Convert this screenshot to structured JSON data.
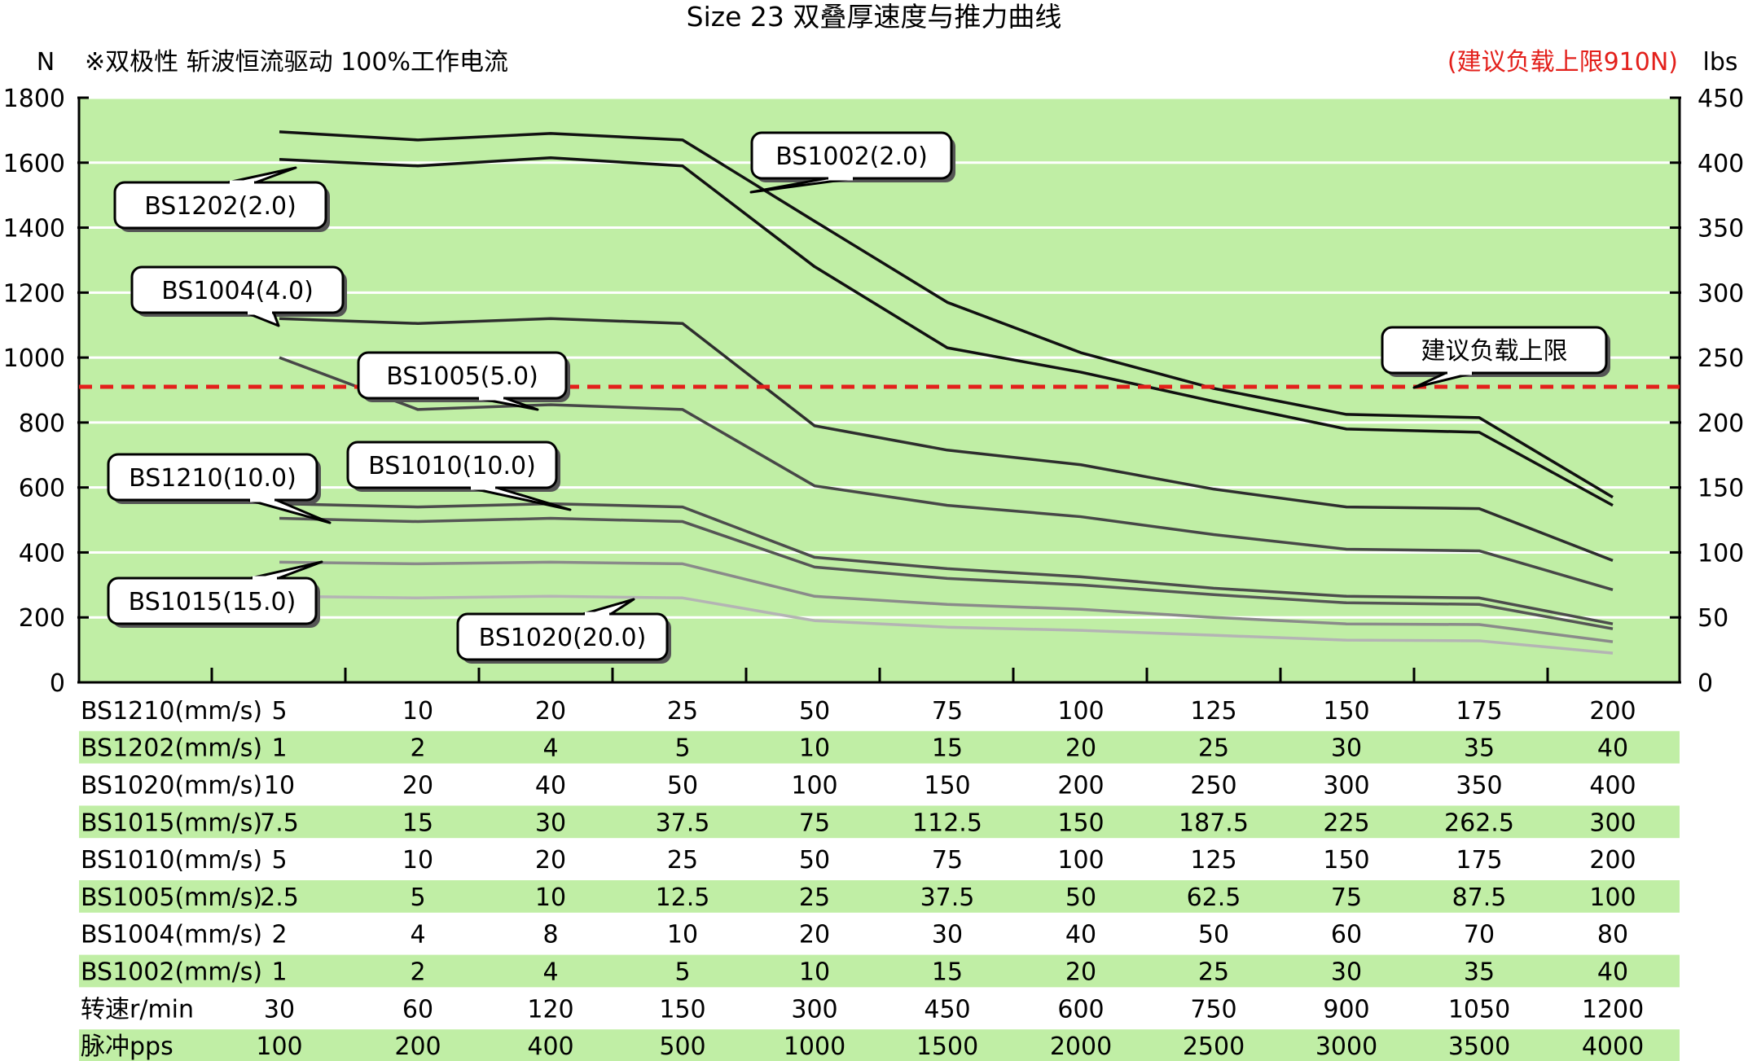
{
  "chart_data": {
    "type": "line",
    "title": "Size 23 双叠厚速度与推力曲线",
    "subtitle": "※双极性 斩波恒流驱动 100%工作电流",
    "note": "(建议负载上限910N)",
    "y_left_unit": "N",
    "y_right_unit": "lbs",
    "y_left_range": [
      0,
      1800
    ],
    "y_right_range": [
      0,
      450
    ],
    "y_left_ticks": [
      "0",
      "200",
      "400",
      "600",
      "800",
      "1000",
      "1200",
      "1400",
      "1600",
      "1800"
    ],
    "y_right_ticks": [
      "0",
      "50",
      "100",
      "150",
      "200",
      "250",
      "300",
      "350",
      "400",
      "450"
    ],
    "grid": true,
    "background_color": "#c0eea5",
    "reference_line": {
      "value": 910,
      "label": "建议负载上限",
      "color": "#e3201b"
    },
    "series": [
      {
        "name": "BS1002(2.0)",
        "color": "#111111",
        "values": [
          1695,
          1670,
          1690,
          1670,
          1420,
          1170,
          1015,
          905,
          825,
          815,
          570
        ]
      },
      {
        "name": "BS1202(2.0)",
        "color": "#111111",
        "values": [
          1610,
          1590,
          1615,
          1590,
          1280,
          1030,
          955,
          865,
          780,
          770,
          545
        ]
      },
      {
        "name": "BS1004(4.0)",
        "color": "#2e2e2e",
        "values": [
          1120,
          1105,
          1120,
          1105,
          790,
          715,
          670,
          595,
          540,
          535,
          375
        ]
      },
      {
        "name": "BS1005(5.0)",
        "color": "#474747",
        "values": [
          1000,
          840,
          855,
          840,
          605,
          545,
          510,
          455,
          410,
          405,
          285
        ]
      },
      {
        "name": "BS1010(10.0)",
        "color": "#4c4c4c",
        "values": [
          550,
          540,
          550,
          540,
          385,
          350,
          325,
          290,
          265,
          260,
          180
        ]
      },
      {
        "name": "BS1210(10.0)",
        "color": "#555555",
        "values": [
          505,
          495,
          505,
          495,
          355,
          320,
          300,
          270,
          245,
          240,
          165
        ]
      },
      {
        "name": "BS1015(15.0)",
        "color": "#8a8a8a",
        "values": [
          370,
          365,
          370,
          365,
          265,
          240,
          225,
          200,
          180,
          178,
          125
        ]
      },
      {
        "name": "BS1020(20.0)",
        "color": "#b4b4b4",
        "values": [
          265,
          260,
          265,
          260,
          190,
          170,
          160,
          145,
          130,
          128,
          90
        ]
      }
    ],
    "callouts": [
      {
        "text": "BS1002(2.0)",
        "series": "BS1002(2.0)"
      },
      {
        "text": "BS1202(2.0)",
        "series": "BS1202(2.0)"
      },
      {
        "text": "BS1004(4.0)",
        "series": "BS1004(4.0)"
      },
      {
        "text": "BS1005(5.0)",
        "series": "BS1005(5.0)"
      },
      {
        "text": "BS1210(10.0)",
        "series": "BS1210(10.0)"
      },
      {
        "text": "BS1010(10.0)",
        "series": "BS1010(10.0)"
      },
      {
        "text": "BS1015(15.0)",
        "series": "BS1015(15.0)"
      },
      {
        "text": "BS1020(20.0)",
        "series": "BS1020(20.0)"
      },
      {
        "text": "建议负载上限",
        "series": "reference"
      }
    ],
    "table": [
      {
        "label": "BS1210(mm/s)",
        "values": [
          "5",
          "10",
          "20",
          "25",
          "50",
          "75",
          "100",
          "125",
          "150",
          "175",
          "200"
        ]
      },
      {
        "label": "BS1202(mm/s)",
        "values": [
          "1",
          "2",
          "4",
          "5",
          "10",
          "15",
          "20",
          "25",
          "30",
          "35",
          "40"
        ]
      },
      {
        "label": "BS1020(mm/s)",
        "values": [
          "10",
          "20",
          "40",
          "50",
          "100",
          "150",
          "200",
          "250",
          "300",
          "350",
          "400"
        ]
      },
      {
        "label": "BS1015(mm/s)",
        "values": [
          "7.5",
          "15",
          "30",
          "37.5",
          "75",
          "112.5",
          "150",
          "187.5",
          "225",
          "262.5",
          "300"
        ]
      },
      {
        "label": "BS1010(mm/s)",
        "values": [
          "5",
          "10",
          "20",
          "25",
          "50",
          "75",
          "100",
          "125",
          "150",
          "175",
          "200"
        ]
      },
      {
        "label": "BS1005(mm/s)",
        "values": [
          "2.5",
          "5",
          "10",
          "12.5",
          "25",
          "37.5",
          "50",
          "62.5",
          "75",
          "87.5",
          "100"
        ]
      },
      {
        "label": "BS1004(mm/s)",
        "values": [
          "2",
          "4",
          "8",
          "10",
          "20",
          "30",
          "40",
          "50",
          "60",
          "70",
          "80"
        ]
      },
      {
        "label": "BS1002(mm/s)",
        "values": [
          "1",
          "2",
          "4",
          "5",
          "10",
          "15",
          "20",
          "25",
          "30",
          "35",
          "40"
        ]
      },
      {
        "label": "转速r/min",
        "values": [
          "30",
          "60",
          "120",
          "150",
          "300",
          "450",
          "600",
          "750",
          "900",
          "1050",
          "1200"
        ]
      },
      {
        "label": "脉冲pps",
        "values": [
          "100",
          "200",
          "400",
          "500",
          "1000",
          "1500",
          "2000",
          "2500",
          "3000",
          "3500",
          "4000"
        ]
      }
    ],
    "table_row_stripe_color": "#c0eea5"
  }
}
